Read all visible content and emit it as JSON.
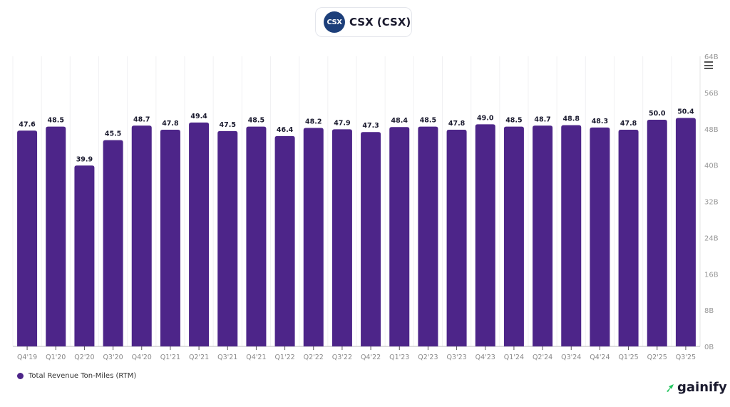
{
  "header": {
    "logo_text": "CSX",
    "title": "CSX (CSX)"
  },
  "brand": {
    "name": "gainify",
    "icon": "arrow-up-right-icon",
    "color": "#22c55e"
  },
  "menu": {
    "icon": "hamburger-menu-icon"
  },
  "chart_data": {
    "type": "bar",
    "categories": [
      "Q4'19",
      "Q1'20",
      "Q2'20",
      "Q3'20",
      "Q4'20",
      "Q1'21",
      "Q2'21",
      "Q3'21",
      "Q4'21",
      "Q1'22",
      "Q2'22",
      "Q3'22",
      "Q4'22",
      "Q1'23",
      "Q2'23",
      "Q3'23",
      "Q4'23",
      "Q1'24",
      "Q2'24",
      "Q3'24",
      "Q4'24",
      "Q1'25",
      "Q2'25",
      "Q3'25"
    ],
    "series": [
      {
        "name": "Total Revenue Ton-Miles (RTM)",
        "color": "#4d2589",
        "values": [
          47.6,
          48.5,
          39.9,
          45.5,
          48.7,
          47.8,
          49.4,
          47.5,
          48.5,
          46.4,
          48.2,
          47.9,
          47.3,
          48.4,
          48.5,
          47.8,
          49.0,
          48.5,
          48.7,
          48.8,
          48.3,
          47.8,
          50.0,
          50.4
        ]
      }
    ],
    "y_unit": "B",
    "ylim": [
      0,
      64
    ],
    "y_ticks": [
      "0B",
      "8B",
      "16B",
      "24B",
      "32B",
      "40B",
      "48B",
      "56B",
      "64B"
    ],
    "y_axis_position": "right",
    "grid": "vertical",
    "legend_placement": "bottom-left"
  }
}
